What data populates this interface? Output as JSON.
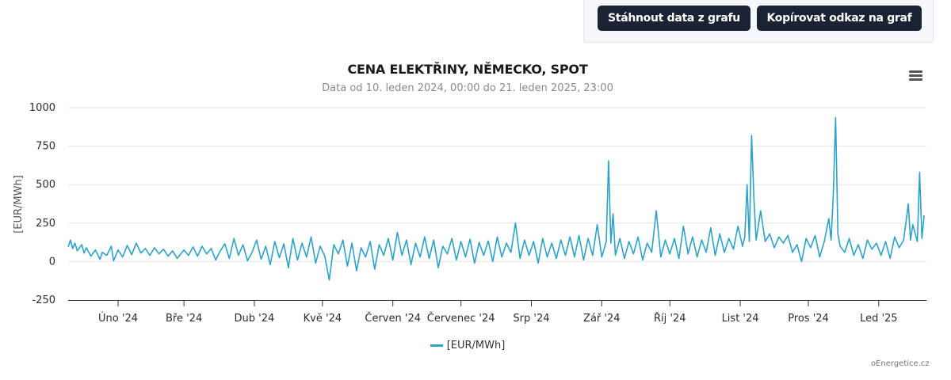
{
  "toolbar": {
    "download_label": "Stáhnout data z grafu",
    "copy_label": "Kopírovat odkaz na graf"
  },
  "credits": "oEnergetice.cz",
  "icons": {
    "menu": "hamburger-menu-icon"
  },
  "colors": {
    "series": "#2ba2c8",
    "button_bg": "#1a2233"
  },
  "chart_data": {
    "type": "line",
    "title": "CENA ELEKTŘINY, NĚMECKO, SPOT",
    "subtitle": "Data od 10. leden 2024, 00:00 do 21. leden 2025, 23:00",
    "ylabel": "[EUR/MWh]",
    "ylim": [
      -250,
      1000
    ],
    "yticks": [
      1000,
      750,
      500,
      250,
      0,
      -250
    ],
    "x_range": [
      "2024-01-10",
      "2025-01-21"
    ],
    "xticks": [
      {
        "date": "2024-02-01",
        "label": "Úno '24"
      },
      {
        "date": "2024-03-01",
        "label": "Bře '24"
      },
      {
        "date": "2024-04-01",
        "label": "Dub '24"
      },
      {
        "date": "2024-05-01",
        "label": "Kvě '24"
      },
      {
        "date": "2024-06-01",
        "label": "Červen '24"
      },
      {
        "date": "2024-07-01",
        "label": "Červenec '24"
      },
      {
        "date": "2024-08-01",
        "label": "Srp '24"
      },
      {
        "date": "2024-09-01",
        "label": "Zář '24"
      },
      {
        "date": "2024-10-01",
        "label": "Říj '24"
      },
      {
        "date": "2024-11-01",
        "label": "List '24"
      },
      {
        "date": "2024-12-01",
        "label": "Pros '24"
      },
      {
        "date": "2025-01-01",
        "label": "Led '25"
      }
    ],
    "grid": true,
    "legend_position": "bottom-center",
    "series": [
      {
        "name": "[EUR/MWh]",
        "points": [
          [
            "2024-01-10",
            95
          ],
          [
            "2024-01-11",
            140
          ],
          [
            "2024-01-12",
            85
          ],
          [
            "2024-01-13",
            120
          ],
          [
            "2024-01-14",
            70
          ],
          [
            "2024-01-16",
            110
          ],
          [
            "2024-01-17",
            55
          ],
          [
            "2024-01-18",
            90
          ],
          [
            "2024-01-20",
            35
          ],
          [
            "2024-01-22",
            75
          ],
          [
            "2024-01-24",
            15
          ],
          [
            "2024-01-25",
            60
          ],
          [
            "2024-01-27",
            40
          ],
          [
            "2024-01-29",
            100
          ],
          [
            "2024-01-30",
            5
          ],
          [
            "2024-02-01",
            75
          ],
          [
            "2024-02-03",
            30
          ],
          [
            "2024-02-05",
            105
          ],
          [
            "2024-02-07",
            45
          ],
          [
            "2024-02-09",
            120
          ],
          [
            "2024-02-11",
            55
          ],
          [
            "2024-02-13",
            85
          ],
          [
            "2024-02-15",
            40
          ],
          [
            "2024-02-17",
            90
          ],
          [
            "2024-02-19",
            50
          ],
          [
            "2024-02-21",
            80
          ],
          [
            "2024-02-23",
            35
          ],
          [
            "2024-02-25",
            70
          ],
          [
            "2024-02-27",
            20
          ],
          [
            "2024-03-01",
            75
          ],
          [
            "2024-03-03",
            40
          ],
          [
            "2024-03-05",
            95
          ],
          [
            "2024-03-07",
            35
          ],
          [
            "2024-03-09",
            100
          ],
          [
            "2024-03-11",
            50
          ],
          [
            "2024-03-13",
            85
          ],
          [
            "2024-03-15",
            10
          ],
          [
            "2024-03-17",
            70
          ],
          [
            "2024-03-19",
            115
          ],
          [
            "2024-03-21",
            20
          ],
          [
            "2024-03-23",
            150
          ],
          [
            "2024-03-25",
            40
          ],
          [
            "2024-03-27",
            110
          ],
          [
            "2024-03-29",
            5
          ],
          [
            "2024-03-31",
            60
          ],
          [
            "2024-04-02",
            140
          ],
          [
            "2024-04-04",
            15
          ],
          [
            "2024-04-06",
            100
          ],
          [
            "2024-04-08",
            -20
          ],
          [
            "2024-04-10",
            130
          ],
          [
            "2024-04-12",
            25
          ],
          [
            "2024-04-14",
            115
          ],
          [
            "2024-04-16",
            -40
          ],
          [
            "2024-04-18",
            150
          ],
          [
            "2024-04-20",
            10
          ],
          [
            "2024-04-22",
            120
          ],
          [
            "2024-04-24",
            30
          ],
          [
            "2024-04-26",
            160
          ],
          [
            "2024-04-28",
            -10
          ],
          [
            "2024-04-30",
            100
          ],
          [
            "2024-05-02",
            35
          ],
          [
            "2024-05-04",
            -120
          ],
          [
            "2024-05-06",
            110
          ],
          [
            "2024-05-08",
            50
          ],
          [
            "2024-05-10",
            140
          ],
          [
            "2024-05-12",
            -30
          ],
          [
            "2024-05-14",
            120
          ],
          [
            "2024-05-16",
            -60
          ],
          [
            "2024-05-18",
            90
          ],
          [
            "2024-05-20",
            30
          ],
          [
            "2024-05-22",
            130
          ],
          [
            "2024-05-24",
            -50
          ],
          [
            "2024-05-26",
            110
          ],
          [
            "2024-05-28",
            40
          ],
          [
            "2024-05-30",
            150
          ],
          [
            "2024-06-01",
            10
          ],
          [
            "2024-06-03",
            190
          ],
          [
            "2024-06-05",
            40
          ],
          [
            "2024-06-07",
            140
          ],
          [
            "2024-06-09",
            -20
          ],
          [
            "2024-06-11",
            120
          ],
          [
            "2024-06-13",
            30
          ],
          [
            "2024-06-15",
            160
          ],
          [
            "2024-06-17",
            20
          ],
          [
            "2024-06-19",
            140
          ],
          [
            "2024-06-21",
            -40
          ],
          [
            "2024-06-23",
            100
          ],
          [
            "2024-06-25",
            50
          ],
          [
            "2024-06-27",
            150
          ],
          [
            "2024-06-29",
            10
          ],
          [
            "2024-07-01",
            130
          ],
          [
            "2024-07-03",
            30
          ],
          [
            "2024-07-05",
            145
          ],
          [
            "2024-07-07",
            -10
          ],
          [
            "2024-07-09",
            125
          ],
          [
            "2024-07-11",
            40
          ],
          [
            "2024-07-13",
            135
          ],
          [
            "2024-07-15",
            0
          ],
          [
            "2024-07-17",
            160
          ],
          [
            "2024-07-19",
            30
          ],
          [
            "2024-07-21",
            120
          ],
          [
            "2024-07-23",
            60
          ],
          [
            "2024-07-25",
            250
          ],
          [
            "2024-07-27",
            20
          ],
          [
            "2024-07-29",
            140
          ],
          [
            "2024-07-31",
            40
          ],
          [
            "2024-08-02",
            130
          ],
          [
            "2024-08-04",
            -10
          ],
          [
            "2024-08-06",
            150
          ],
          [
            "2024-08-08",
            30
          ],
          [
            "2024-08-10",
            120
          ],
          [
            "2024-08-12",
            20
          ],
          [
            "2024-08-14",
            140
          ],
          [
            "2024-08-16",
            40
          ],
          [
            "2024-08-18",
            160
          ],
          [
            "2024-08-20",
            30
          ],
          [
            "2024-08-22",
            170
          ],
          [
            "2024-08-24",
            10
          ],
          [
            "2024-08-26",
            150
          ],
          [
            "2024-08-28",
            40
          ],
          [
            "2024-08-30",
            240
          ],
          [
            "2024-09-01",
            30
          ],
          [
            "2024-09-03",
            130
          ],
          [
            "2024-09-04",
            655
          ],
          [
            "2024-09-05",
            120
          ],
          [
            "2024-09-06",
            310
          ],
          [
            "2024-09-07",
            40
          ],
          [
            "2024-09-09",
            150
          ],
          [
            "2024-09-11",
            20
          ],
          [
            "2024-09-13",
            130
          ],
          [
            "2024-09-15",
            50
          ],
          [
            "2024-09-17",
            160
          ],
          [
            "2024-09-19",
            10
          ],
          [
            "2024-09-21",
            120
          ],
          [
            "2024-09-23",
            60
          ],
          [
            "2024-09-25",
            330
          ],
          [
            "2024-09-27",
            30
          ],
          [
            "2024-09-29",
            140
          ],
          [
            "2024-10-01",
            50
          ],
          [
            "2024-10-03",
            150
          ],
          [
            "2024-10-05",
            20
          ],
          [
            "2024-10-07",
            230
          ],
          [
            "2024-10-09",
            50
          ],
          [
            "2024-10-11",
            160
          ],
          [
            "2024-10-13",
            30
          ],
          [
            "2024-10-15",
            140
          ],
          [
            "2024-10-17",
            60
          ],
          [
            "2024-10-19",
            220
          ],
          [
            "2024-10-21",
            40
          ],
          [
            "2024-10-23",
            180
          ],
          [
            "2024-10-25",
            60
          ],
          [
            "2024-10-27",
            150
          ],
          [
            "2024-10-29",
            80
          ],
          [
            "2024-10-31",
            230
          ],
          [
            "2024-11-02",
            100
          ],
          [
            "2024-11-03",
            160
          ],
          [
            "2024-11-04",
            500
          ],
          [
            "2024-11-05",
            130
          ],
          [
            "2024-11-06",
            820
          ],
          [
            "2024-11-07",
            410
          ],
          [
            "2024-11-08",
            140
          ],
          [
            "2024-11-10",
            330
          ],
          [
            "2024-11-12",
            130
          ],
          [
            "2024-11-14",
            180
          ],
          [
            "2024-11-16",
            90
          ],
          [
            "2024-11-18",
            160
          ],
          [
            "2024-11-20",
            120
          ],
          [
            "2024-11-22",
            170
          ],
          [
            "2024-11-24",
            60
          ],
          [
            "2024-11-26",
            110
          ],
          [
            "2024-11-28",
            0
          ],
          [
            "2024-11-30",
            150
          ],
          [
            "2024-12-02",
            90
          ],
          [
            "2024-12-04",
            170
          ],
          [
            "2024-12-06",
            30
          ],
          [
            "2024-12-08",
            130
          ],
          [
            "2024-12-10",
            280
          ],
          [
            "2024-12-11",
            140
          ],
          [
            "2024-12-12",
            440
          ],
          [
            "2024-12-13",
            935
          ],
          [
            "2024-12-14",
            180
          ],
          [
            "2024-12-15",
            100
          ],
          [
            "2024-12-17",
            60
          ],
          [
            "2024-12-19",
            150
          ],
          [
            "2024-12-21",
            40
          ],
          [
            "2024-12-23",
            110
          ],
          [
            "2024-12-25",
            20
          ],
          [
            "2024-12-27",
            140
          ],
          [
            "2024-12-29",
            80
          ],
          [
            "2024-12-31",
            120
          ],
          [
            "2025-01-02",
            40
          ],
          [
            "2025-01-04",
            130
          ],
          [
            "2025-01-06",
            20
          ],
          [
            "2025-01-08",
            160
          ],
          [
            "2025-01-10",
            90
          ],
          [
            "2025-01-12",
            140
          ],
          [
            "2025-01-14",
            375
          ],
          [
            "2025-01-15",
            140
          ],
          [
            "2025-01-16",
            240
          ],
          [
            "2025-01-18",
            130
          ],
          [
            "2025-01-19",
            580
          ],
          [
            "2025-01-20",
            150
          ],
          [
            "2025-01-21",
            300
          ]
        ]
      }
    ]
  }
}
